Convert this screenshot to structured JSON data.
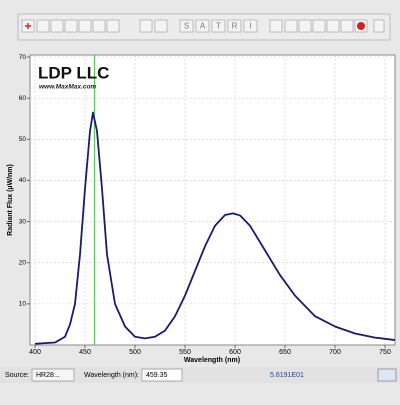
{
  "toolbar": {
    "letters": [
      "S",
      "A",
      "T",
      "R",
      "I"
    ]
  },
  "chart_data": {
    "type": "line",
    "logo": {
      "title": "LDP LLC",
      "url": "www.MaxMax.com"
    },
    "x_label": "Wavelength (nm)",
    "y_label": "Radiant Flux (µW/nm)",
    "x": [
      400,
      420,
      430,
      435,
      440,
      445,
      450,
      455,
      458,
      462,
      467,
      472,
      480,
      490,
      500,
      510,
      520,
      530,
      540,
      550,
      560,
      570,
      580,
      590,
      598,
      605,
      615,
      630,
      645,
      660,
      680,
      700,
      720,
      740,
      760
    ],
    "values": [
      0.3,
      0.6,
      2,
      5,
      10,
      22,
      38,
      52,
      56.5,
      52,
      38,
      22,
      10,
      4.5,
      2,
      1.6,
      2,
      3.5,
      7,
      12,
      18,
      24,
      29,
      31.6,
      32,
      31.5,
      29,
      23,
      17,
      12,
      7,
      4.5,
      2.8,
      1.8,
      1.2
    ],
    "color": "#1a1a6e",
    "xlim": [
      395,
      760
    ],
    "ylim": [
      0,
      70.5
    ],
    "xticks": [
      400,
      450,
      500,
      550,
      600,
      650,
      700,
      750
    ],
    "yticks": [
      10,
      20,
      30,
      40,
      50,
      60,
      70
    ],
    "grid": true,
    "cursor": {
      "x": 459.35,
      "color": "#3cc43c"
    }
  },
  "status": {
    "source_label": "Source:",
    "source": "HR28...",
    "wavelength_label": "Wavelength (nm):",
    "readout": "5.6191E01"
  }
}
